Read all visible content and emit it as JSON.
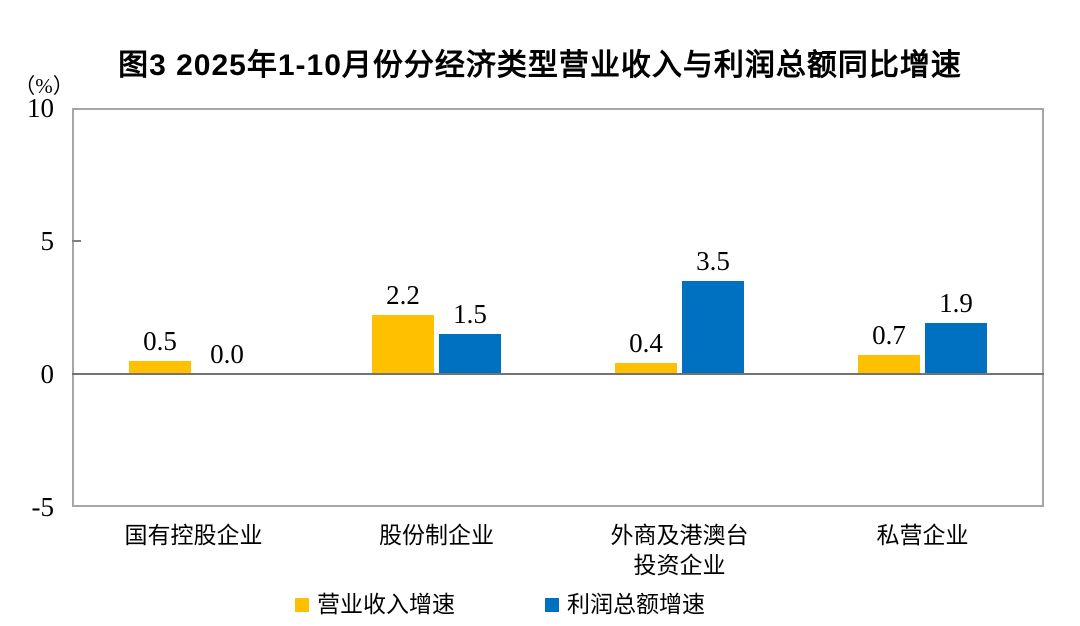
{
  "title": "图3  2025年1-10月份分经济类型营业收入与利润总额同比增速",
  "y_axis_unit": "（%）",
  "chart_data": {
    "type": "bar",
    "title": "图3  2025年1-10月份分经济类型营业收入与利润总额同比增速",
    "categories": [
      "国有控股企业",
      "股份制企业",
      "外商及港澳台\n投资企业",
      "私营企业"
    ],
    "series": [
      {
        "name": "营业收入增速",
        "color": "#FFC000",
        "values": [
          0.5,
          2.2,
          0.4,
          0.7
        ]
      },
      {
        "name": "利润总额增速",
        "color": "#0070C0",
        "values": [
          0.0,
          1.5,
          3.5,
          1.9
        ]
      }
    ],
    "data_labels": [
      [
        "0.5",
        "2.2",
        "0.4",
        "0.7"
      ],
      [
        "0.0",
        "1.5",
        "3.5",
        "1.9"
      ]
    ],
    "xlabel": "",
    "ylabel": "（%）",
    "ylim": [
      -5,
      10
    ],
    "yticks": [
      10,
      5,
      0,
      -5
    ],
    "grid": false,
    "legend_position": "bottom"
  }
}
